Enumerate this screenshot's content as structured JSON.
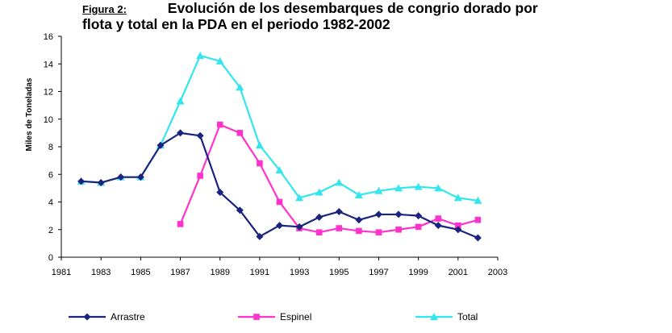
{
  "caption": {
    "label": "Figura 2:",
    "line1": "Evolución de los desembarques de congrio dorado por",
    "line2": "flota y total en la PDA en el periodo 1982-2002"
  },
  "chart_data": {
    "type": "line",
    "title": "Evolución de los desembarques de congrio dorado por flota y total en la PDA en el periodo 1982-2002",
    "xlabel": "",
    "ylabel": "Miles de Toneladas",
    "xlim": [
      1981,
      2003
    ],
    "ylim": [
      0,
      16
    ],
    "x_ticks": [
      1981,
      1983,
      1985,
      1987,
      1989,
      1991,
      1993,
      1995,
      1997,
      1999,
      2001,
      2003
    ],
    "y_ticks": [
      0,
      2,
      4,
      6,
      8,
      10,
      12,
      14,
      16
    ],
    "grid": false,
    "legend_position": "bottom",
    "series": [
      {
        "name": "Arrastre",
        "color": "#1a237e",
        "marker": "diamond",
        "x": [
          1982,
          1983,
          1984,
          1985,
          1986,
          1987,
          1988,
          1989,
          1990,
          1991,
          1992,
          1993,
          1994,
          1995,
          1996,
          1997,
          1998,
          1999,
          2000,
          2001,
          2002
        ],
        "values": [
          5.5,
          5.4,
          5.8,
          5.8,
          8.1,
          9.0,
          8.8,
          4.7,
          3.4,
          1.5,
          2.3,
          2.2,
          2.9,
          3.3,
          2.7,
          3.1,
          3.1,
          3.0,
          2.3,
          2.0,
          1.4
        ]
      },
      {
        "name": "Espinel",
        "color": "#ff33cc",
        "marker": "square",
        "x": [
          1987,
          1988,
          1989,
          1990,
          1991,
          1992,
          1993,
          1994,
          1995,
          1996,
          1997,
          1998,
          1999,
          2000,
          2001,
          2002
        ],
        "values": [
          2.4,
          5.9,
          9.6,
          9.0,
          6.8,
          4.0,
          2.1,
          1.8,
          2.1,
          1.9,
          1.8,
          2.0,
          2.2,
          2.8,
          2.3,
          2.7
        ]
      },
      {
        "name": "Total",
        "color": "#33e6ee",
        "marker": "triangle",
        "x": [
          1982,
          1983,
          1984,
          1985,
          1986,
          1987,
          1988,
          1989,
          1990,
          1991,
          1992,
          1993,
          1994,
          1995,
          1996,
          1997,
          1998,
          1999,
          2000,
          2001,
          2002
        ],
        "values": [
          5.5,
          5.4,
          5.8,
          5.8,
          8.1,
          11.3,
          14.6,
          14.2,
          12.3,
          8.1,
          6.3,
          4.3,
          4.7,
          5.4,
          4.5,
          4.8,
          5.0,
          5.1,
          5.0,
          4.3,
          4.1
        ]
      }
    ]
  }
}
